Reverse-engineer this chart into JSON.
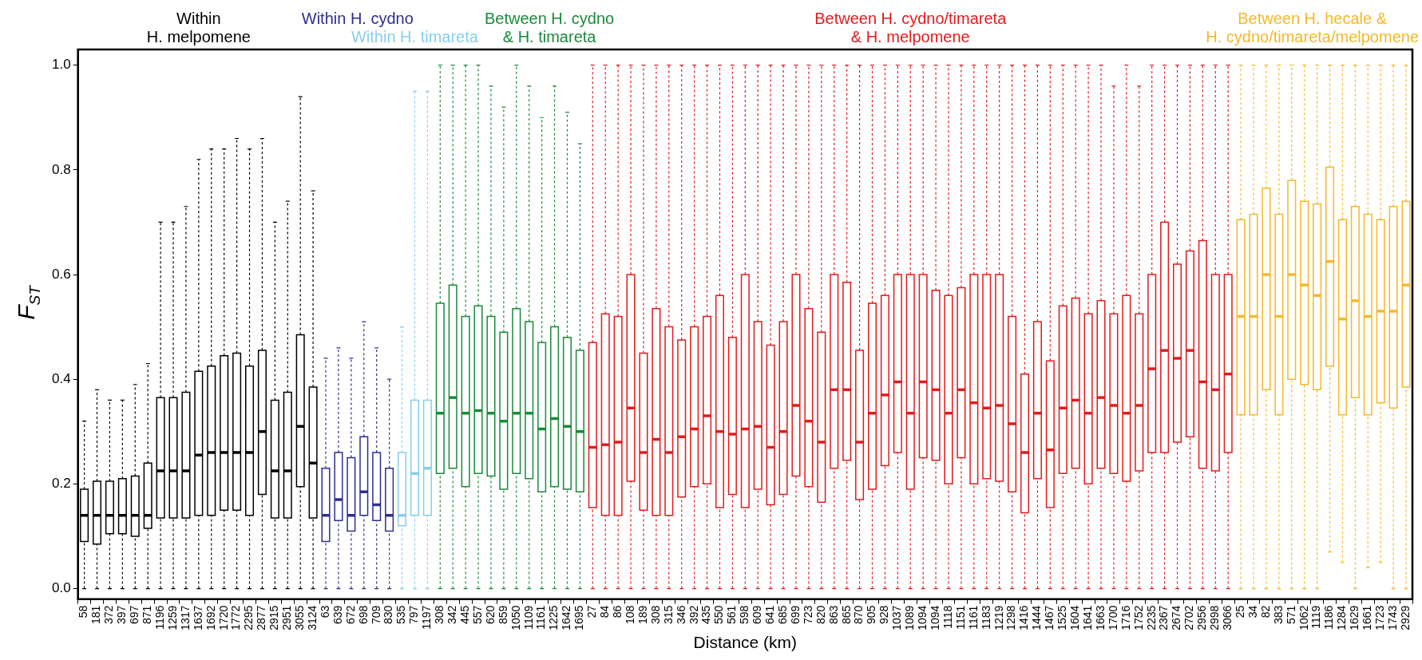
{
  "chart_data": {
    "type": "box",
    "xlabel": "Distance (km)",
    "ylabel": "F$_{ST}$",
    "ylim": [
      -0.02,
      1.03
    ],
    "yticks": [
      {
        "value": 0,
        "label": "0.0"
      },
      {
        "value": 0.2,
        "label": "0.2"
      },
      {
        "value": 0.4,
        "label": "0.4"
      },
      {
        "value": 0.6,
        "label": "0.6"
      },
      {
        "value": 0.8,
        "label": "0.8"
      },
      {
        "value": 1,
        "label": "1.0"
      }
    ],
    "grid": false,
    "legend": false,
    "categories": [
      "58",
      "181",
      "372",
      "397",
      "697",
      "871",
      "1196",
      "1259",
      "1317",
      "1637",
      "1692",
      "1720",
      "1772",
      "2295",
      "2877",
      "2915",
      "2951",
      "3055",
      "3124",
      "63",
      "639",
      "672",
      "698",
      "709",
      "830",
      "535",
      "797",
      "1197",
      "308",
      "342",
      "445",
      "557",
      "620",
      "859",
      "1050",
      "1109",
      "1161",
      "1225",
      "1642",
      "1695",
      "27",
      "84",
      "86",
      "108",
      "189",
      "308",
      "315",
      "346",
      "392",
      "435",
      "550",
      "561",
      "598",
      "609",
      "641",
      "685",
      "699",
      "723",
      "820",
      "863",
      "865",
      "870",
      "905",
      "928",
      "1037",
      "1089",
      "1094",
      "1094",
      "1118",
      "1151",
      "1161",
      "1183",
      "1219",
      "1298",
      "1416",
      "1444",
      "1467",
      "1525",
      "1604",
      "1641",
      "1663",
      "1700",
      "1716",
      "1752",
      "2235",
      "2367",
      "2674",
      "2702",
      "2956",
      "2998",
      "3066",
      "25",
      "34",
      "82",
      "383",
      "571",
      "1062",
      "1119",
      "1186",
      "1284",
      "1629",
      "1661",
      "1723",
      "1743",
      "2929"
    ],
    "series": [
      {
        "name": "Within\nH. melpomene",
        "color": "#000000",
        "boxes": [
          {
            "low": 0,
            "q1": 0.09,
            "median": 0.14,
            "q3": 0.19,
            "high": 0.32
          },
          {
            "low": 0,
            "q1": 0.085,
            "median": 0.14,
            "q3": 0.205,
            "high": 0.38
          },
          {
            "low": 0,
            "q1": 0.105,
            "median": 0.14,
            "q3": 0.205,
            "high": 0.36
          },
          {
            "low": 0,
            "q1": 0.105,
            "median": 0.14,
            "q3": 0.21,
            "high": 0.36
          },
          {
            "low": 0,
            "q1": 0.1,
            "median": 0.14,
            "q3": 0.215,
            "high": 0.39
          },
          {
            "low": 0,
            "q1": 0.115,
            "median": 0.14,
            "q3": 0.24,
            "high": 0.43
          },
          {
            "low": 0,
            "q1": 0.135,
            "median": 0.225,
            "q3": 0.365,
            "high": 0.7
          },
          {
            "low": 0,
            "q1": 0.135,
            "median": 0.225,
            "q3": 0.365,
            "high": 0.7
          },
          {
            "low": 0,
            "q1": 0.135,
            "median": 0.225,
            "q3": 0.375,
            "high": 0.73
          },
          {
            "low": 0,
            "q1": 0.14,
            "median": 0.255,
            "q3": 0.415,
            "high": 0.82
          },
          {
            "low": 0,
            "q1": 0.14,
            "median": 0.26,
            "q3": 0.425,
            "high": 0.84
          },
          {
            "low": 0,
            "q1": 0.15,
            "median": 0.26,
            "q3": 0.445,
            "high": 0.84
          },
          {
            "low": 0,
            "q1": 0.15,
            "median": 0.26,
            "q3": 0.45,
            "high": 0.86
          },
          {
            "low": 0,
            "q1": 0.14,
            "median": 0.26,
            "q3": 0.425,
            "high": 0.84
          },
          {
            "low": 0,
            "q1": 0.18,
            "median": 0.3,
            "q3": 0.455,
            "high": 0.86
          },
          {
            "low": 0,
            "q1": 0.135,
            "median": 0.225,
            "q3": 0.36,
            "high": 0.7
          },
          {
            "low": 0,
            "q1": 0.135,
            "median": 0.225,
            "q3": 0.375,
            "high": 0.74
          },
          {
            "low": 0,
            "q1": 0.195,
            "median": 0.31,
            "q3": 0.485,
            "high": 0.94
          },
          {
            "low": 0,
            "q1": 0.135,
            "median": 0.24,
            "q3": 0.385,
            "high": 0.76
          },
          null,
          null,
          null,
          null,
          null,
          null,
          null,
          null,
          null,
          null,
          null,
          null,
          null,
          null,
          null,
          null,
          null,
          null,
          null,
          null,
          null,
          null,
          null,
          null,
          null,
          null,
          null,
          null,
          null,
          null,
          null,
          null,
          null,
          null,
          null,
          null,
          null,
          null,
          null,
          null,
          null,
          null,
          null,
          null,
          null,
          null,
          null,
          null,
          null,
          null,
          null,
          null,
          null,
          null,
          null,
          null,
          null,
          null,
          null,
          null,
          null,
          null,
          null,
          null,
          null,
          null,
          null,
          null,
          null,
          null,
          null,
          null,
          null,
          null,
          null,
          null,
          null,
          null,
          null,
          null,
          null,
          null,
          null,
          null,
          null,
          null
        ]
      },
      {
        "name": "Within H. cydno",
        "color": "#2e2e8f",
        "boxes": [
          null,
          null,
          null,
          null,
          null,
          null,
          null,
          null,
          null,
          null,
          null,
          null,
          null,
          null,
          null,
          null,
          null,
          null,
          null,
          {
            "low": 0,
            "q1": 0.09,
            "median": 0.14,
            "q3": 0.23,
            "high": 0.44
          },
          {
            "low": 0,
            "q1": 0.13,
            "median": 0.17,
            "q3": 0.26,
            "high": 0.46
          },
          {
            "low": 0,
            "q1": 0.11,
            "median": 0.14,
            "q3": 0.25,
            "high": 0.44
          },
          {
            "low": 0,
            "q1": 0.14,
            "median": 0.185,
            "q3": 0.29,
            "high": 0.51
          },
          {
            "low": 0,
            "q1": 0.13,
            "median": 0.16,
            "q3": 0.26,
            "high": 0.46
          },
          {
            "low": 0,
            "q1": 0.11,
            "median": 0.14,
            "q3": 0.23,
            "high": 0.4
          },
          null,
          null,
          null,
          null,
          null,
          null,
          null,
          null,
          null,
          null,
          null,
          null,
          null,
          null,
          null,
          null,
          null,
          null,
          null,
          null,
          null,
          null,
          null,
          null,
          null,
          null,
          null,
          null,
          null,
          null,
          null,
          null,
          null,
          null,
          null,
          null,
          null,
          null,
          null,
          null,
          null,
          null,
          null,
          null,
          null,
          null,
          null,
          null,
          null,
          null,
          null,
          null,
          null,
          null,
          null,
          null,
          null,
          null,
          null,
          null,
          null,
          null,
          null,
          null,
          null,
          null,
          null,
          null,
          null,
          null,
          null,
          null,
          null,
          null,
          null,
          null,
          null,
          null,
          null,
          null
        ]
      },
      {
        "name": "Within H. timareta",
        "color": "#87ceeb",
        "boxes": [
          null,
          null,
          null,
          null,
          null,
          null,
          null,
          null,
          null,
          null,
          null,
          null,
          null,
          null,
          null,
          null,
          null,
          null,
          null,
          null,
          null,
          null,
          null,
          null,
          null,
          {
            "low": 0,
            "q1": 0.12,
            "median": 0.14,
            "q3": 0.26,
            "high": 0.5
          },
          {
            "low": 0,
            "q1": 0.14,
            "median": 0.22,
            "q3": 0.36,
            "high": 0.95
          },
          {
            "low": 0,
            "q1": 0.14,
            "median": 0.23,
            "q3": 0.36,
            "high": 0.95
          },
          null,
          null,
          null,
          null,
          null,
          null,
          null,
          null,
          null,
          null,
          null,
          null,
          null,
          null,
          null,
          null,
          null,
          null,
          null,
          null,
          null,
          null,
          null,
          null,
          null,
          null,
          null,
          null,
          null,
          null,
          null,
          null,
          null,
          null,
          null,
          null,
          null,
          null,
          null,
          null,
          null,
          null,
          null,
          null,
          null,
          null,
          null,
          null,
          null,
          null,
          null,
          null,
          null,
          null,
          null,
          null,
          null,
          null,
          null,
          null,
          null,
          null,
          null,
          null,
          null,
          null,
          null,
          null,
          null,
          null,
          null,
          null,
          null,
          null,
          null,
          null,
          null
        ]
      },
      {
        "name": "Between H. cydno\n& H. timareta",
        "color": "#1a8a3a",
        "boxes": [
          null,
          null,
          null,
          null,
          null,
          null,
          null,
          null,
          null,
          null,
          null,
          null,
          null,
          null,
          null,
          null,
          null,
          null,
          null,
          null,
          null,
          null,
          null,
          null,
          null,
          null,
          null,
          null,
          {
            "low": 0,
            "q1": 0.22,
            "median": 0.335,
            "q3": 0.545,
            "high": 1
          },
          {
            "low": 0,
            "q1": 0.23,
            "median": 0.365,
            "q3": 0.58,
            "high": 1
          },
          {
            "low": 0,
            "q1": 0.195,
            "median": 0.335,
            "q3": 0.52,
            "high": 1
          },
          {
            "low": 0,
            "q1": 0.22,
            "median": 0.34,
            "q3": 0.54,
            "high": 1
          },
          {
            "low": 0,
            "q1": 0.215,
            "median": 0.335,
            "q3": 0.52,
            "high": 0.96
          },
          {
            "low": 0,
            "q1": 0.19,
            "median": 0.32,
            "q3": 0.49,
            "high": 0.92
          },
          {
            "low": 0,
            "q1": 0.22,
            "median": 0.335,
            "q3": 0.535,
            "high": 1
          },
          {
            "low": 0,
            "q1": 0.21,
            "median": 0.335,
            "q3": 0.51,
            "high": 0.96
          },
          {
            "low": 0,
            "q1": 0.185,
            "median": 0.305,
            "q3": 0.47,
            "high": 0.9
          },
          {
            "low": 0,
            "q1": 0.195,
            "median": 0.325,
            "q3": 0.5,
            "high": 0.96
          },
          {
            "low": 0,
            "q1": 0.19,
            "median": 0.31,
            "q3": 0.48,
            "high": 0.91
          },
          {
            "low": 0,
            "q1": 0.185,
            "median": 0.3,
            "q3": 0.455,
            "high": 0.85
          },
          null,
          null,
          null,
          null,
          null,
          null,
          null,
          null,
          null,
          null,
          null,
          null,
          null,
          null,
          null,
          null,
          null,
          null,
          null,
          null,
          null,
          null,
          null,
          null,
          null,
          null,
          null,
          null,
          null,
          null,
          null,
          null,
          null,
          null,
          null,
          null,
          null,
          null,
          null,
          null,
          null,
          null,
          null,
          null,
          null,
          null,
          null,
          null,
          null,
          null,
          null,
          null,
          null,
          null,
          null,
          null,
          null,
          null,
          null,
          null,
          null,
          null,
          null,
          null,
          null
        ]
      },
      {
        "name": "Between H. cydno/timareta\n& H. melpomene",
        "color": "#e31a1c",
        "boxes": [
          null,
          null,
          null,
          null,
          null,
          null,
          null,
          null,
          null,
          null,
          null,
          null,
          null,
          null,
          null,
          null,
          null,
          null,
          null,
          null,
          null,
          null,
          null,
          null,
          null,
          null,
          null,
          null,
          null,
          null,
          null,
          null,
          null,
          null,
          null,
          null,
          null,
          null,
          null,
          null,
          {
            "low": 0,
            "q1": 0.155,
            "median": 0.27,
            "q3": 0.47,
            "high": 1
          },
          {
            "low": 0,
            "q1": 0.14,
            "median": 0.275,
            "q3": 0.525,
            "high": 1
          },
          {
            "low": 0,
            "q1": 0.14,
            "median": 0.28,
            "q3": 0.52,
            "high": 1
          },
          {
            "low": 0,
            "q1": 0.205,
            "median": 0.345,
            "q3": 0.6,
            "high": 1
          },
          {
            "low": 0,
            "q1": 0.15,
            "median": 0.26,
            "q3": 0.45,
            "high": 1
          },
          {
            "low": 0,
            "q1": 0.14,
            "median": 0.285,
            "q3": 0.535,
            "high": 1
          },
          {
            "low": 0,
            "q1": 0.14,
            "median": 0.26,
            "q3": 0.5,
            "high": 1
          },
          {
            "low": 0,
            "q1": 0.175,
            "median": 0.29,
            "q3": 0.475,
            "high": 1
          },
          {
            "low": 0,
            "q1": 0.195,
            "median": 0.305,
            "q3": 0.5,
            "high": 1
          },
          {
            "low": 0,
            "q1": 0.2,
            "median": 0.33,
            "q3": 0.52,
            "high": 1
          },
          {
            "low": 0,
            "q1": 0.155,
            "median": 0.3,
            "q3": 0.56,
            "high": 1
          },
          {
            "low": 0,
            "q1": 0.18,
            "median": 0.295,
            "q3": 0.48,
            "high": 1
          },
          {
            "low": 0,
            "q1": 0.155,
            "median": 0.305,
            "q3": 0.6,
            "high": 1
          },
          {
            "low": 0,
            "q1": 0.19,
            "median": 0.31,
            "q3": 0.51,
            "high": 1
          },
          {
            "low": 0,
            "q1": 0.16,
            "median": 0.27,
            "q3": 0.465,
            "high": 1
          },
          {
            "low": 0,
            "q1": 0.18,
            "median": 0.3,
            "q3": 0.51,
            "high": 1
          },
          {
            "low": 0,
            "q1": 0.215,
            "median": 0.35,
            "q3": 0.6,
            "high": 1
          },
          {
            "low": 0,
            "q1": 0.195,
            "median": 0.32,
            "q3": 0.535,
            "high": 1
          },
          {
            "low": 0,
            "q1": 0.165,
            "median": 0.28,
            "q3": 0.49,
            "high": 1
          },
          {
            "low": 0,
            "q1": 0.23,
            "median": 0.38,
            "q3": 0.6,
            "high": 1
          },
          {
            "low": 0,
            "q1": 0.245,
            "median": 0.38,
            "q3": 0.585,
            "high": 1
          },
          {
            "low": 0,
            "q1": 0.17,
            "median": 0.28,
            "q3": 0.455,
            "high": 1
          },
          {
            "low": 0,
            "q1": 0.19,
            "median": 0.335,
            "q3": 0.545,
            "high": 1
          },
          {
            "low": 0,
            "q1": 0.235,
            "median": 0.37,
            "q3": 0.56,
            "high": 1
          },
          {
            "low": 0,
            "q1": 0.26,
            "median": 0.395,
            "q3": 0.6,
            "high": 1
          },
          {
            "low": 0,
            "q1": 0.19,
            "median": 0.335,
            "q3": 0.6,
            "high": 1
          },
          {
            "low": 0,
            "q1": 0.25,
            "median": 0.395,
            "q3": 0.6,
            "high": 1
          },
          {
            "low": 0,
            "q1": 0.245,
            "median": 0.38,
            "q3": 0.57,
            "high": 1
          },
          {
            "low": 0,
            "q1": 0.2,
            "median": 0.335,
            "q3": 0.56,
            "high": 1
          },
          {
            "low": 0,
            "q1": 0.25,
            "median": 0.38,
            "q3": 0.575,
            "high": 1
          },
          {
            "low": 0,
            "q1": 0.2,
            "median": 0.355,
            "q3": 0.6,
            "high": 1
          },
          {
            "low": 0,
            "q1": 0.21,
            "median": 0.345,
            "q3": 0.6,
            "high": 1
          },
          {
            "low": 0,
            "q1": 0.205,
            "median": 0.35,
            "q3": 0.6,
            "high": 1
          },
          {
            "low": 0,
            "q1": 0.185,
            "median": 0.315,
            "q3": 0.52,
            "high": 1
          },
          {
            "low": 0,
            "q1": 0.145,
            "median": 0.26,
            "q3": 0.41,
            "high": 1
          },
          {
            "low": 0,
            "q1": 0.21,
            "median": 0.335,
            "q3": 0.51,
            "high": 1
          },
          {
            "low": 0,
            "q1": 0.155,
            "median": 0.265,
            "q3": 0.435,
            "high": 1
          },
          {
            "low": 0,
            "q1": 0.22,
            "median": 0.345,
            "q3": 0.54,
            "high": 1
          },
          {
            "low": 0,
            "q1": 0.23,
            "median": 0.36,
            "q3": 0.555,
            "high": 1
          },
          {
            "low": 0,
            "q1": 0.2,
            "median": 0.335,
            "q3": 0.525,
            "high": 1
          },
          {
            "low": 0,
            "q1": 0.23,
            "median": 0.365,
            "q3": 0.55,
            "high": 1
          },
          {
            "low": 0,
            "q1": 0.22,
            "median": 0.35,
            "q3": 0.525,
            "high": 0.96
          },
          {
            "low": 0,
            "q1": 0.205,
            "median": 0.335,
            "q3": 0.56,
            "high": 1
          },
          {
            "low": 0,
            "q1": 0.225,
            "median": 0.35,
            "q3": 0.525,
            "high": 0.96
          },
          {
            "low": 0,
            "q1": 0.26,
            "median": 0.42,
            "q3": 0.6,
            "high": 1
          },
          {
            "low": 0,
            "q1": 0.26,
            "median": 0.455,
            "q3": 0.7,
            "high": 1
          },
          {
            "low": 0,
            "q1": 0.28,
            "median": 0.44,
            "q3": 0.62,
            "high": 1
          },
          {
            "low": 0,
            "q1": 0.29,
            "median": 0.455,
            "q3": 0.645,
            "high": 1
          },
          {
            "low": 0,
            "q1": 0.23,
            "median": 0.395,
            "q3": 0.665,
            "high": 1
          },
          {
            "low": 0,
            "q1": 0.225,
            "median": 0.38,
            "q3": 0.6,
            "high": 1
          },
          {
            "low": 0,
            "q1": 0.26,
            "median": 0.41,
            "q3": 0.6,
            "high": 1
          },
          null,
          null,
          null,
          null,
          null,
          null,
          null,
          null,
          null,
          null,
          null,
          null,
          null,
          null
        ]
      },
      {
        "name": "Between H. hecale &\nH. cydno/timareta/melpomene",
        "color": "#f5b829",
        "boxes": [
          null,
          null,
          null,
          null,
          null,
          null,
          null,
          null,
          null,
          null,
          null,
          null,
          null,
          null,
          null,
          null,
          null,
          null,
          null,
          null,
          null,
          null,
          null,
          null,
          null,
          null,
          null,
          null,
          null,
          null,
          null,
          null,
          null,
          null,
          null,
          null,
          null,
          null,
          null,
          null,
          null,
          null,
          null,
          null,
          null,
          null,
          null,
          null,
          null,
          null,
          null,
          null,
          null,
          null,
          null,
          null,
          null,
          null,
          null,
          null,
          null,
          null,
          null,
          null,
          null,
          null,
          null,
          null,
          null,
          null,
          null,
          null,
          null,
          null,
          null,
          null,
          null,
          null,
          null,
          null,
          null,
          null,
          null,
          null,
          null,
          null,
          null,
          null,
          null,
          null,
          null,
          {
            "low": 0,
            "q1": 0.332,
            "median": 0.52,
            "q3": 0.705,
            "high": 1
          },
          {
            "low": 0,
            "q1": 0.332,
            "median": 0.52,
            "q3": 0.715,
            "high": 1
          },
          {
            "low": 0,
            "q1": 0.38,
            "median": 0.6,
            "q3": 0.765,
            "high": 1
          },
          {
            "low": 0,
            "q1": 0.332,
            "median": 0.52,
            "q3": 0.715,
            "high": 1
          },
          {
            "low": 0,
            "q1": 0.4,
            "median": 0.6,
            "q3": 0.78,
            "high": 1
          },
          {
            "low": 0,
            "q1": 0.39,
            "median": 0.58,
            "q3": 0.74,
            "high": 1
          },
          {
            "low": 0,
            "q1": 0.38,
            "median": 0.56,
            "q3": 0.735,
            "high": 1
          },
          {
            "low": 0.07,
            "q1": 0.425,
            "median": 0.625,
            "q3": 0.805,
            "high": 1
          },
          {
            "low": 0.05,
            "q1": 0.332,
            "median": 0.515,
            "q3": 0.705,
            "high": 1
          },
          {
            "low": 0,
            "q1": 0.365,
            "median": 0.55,
            "q3": 0.73,
            "high": 1
          },
          {
            "low": 0.04,
            "q1": 0.332,
            "median": 0.52,
            "q3": 0.715,
            "high": 1
          },
          {
            "low": 0.05,
            "q1": 0.355,
            "median": 0.53,
            "q3": 0.705,
            "high": 1
          },
          {
            "low": 0,
            "q1": 0.345,
            "median": 0.53,
            "q3": 0.73,
            "high": 1
          },
          {
            "low": 0,
            "q1": 0.385,
            "median": 0.58,
            "q3": 0.74,
            "high": 1
          }
        ]
      }
    ]
  }
}
